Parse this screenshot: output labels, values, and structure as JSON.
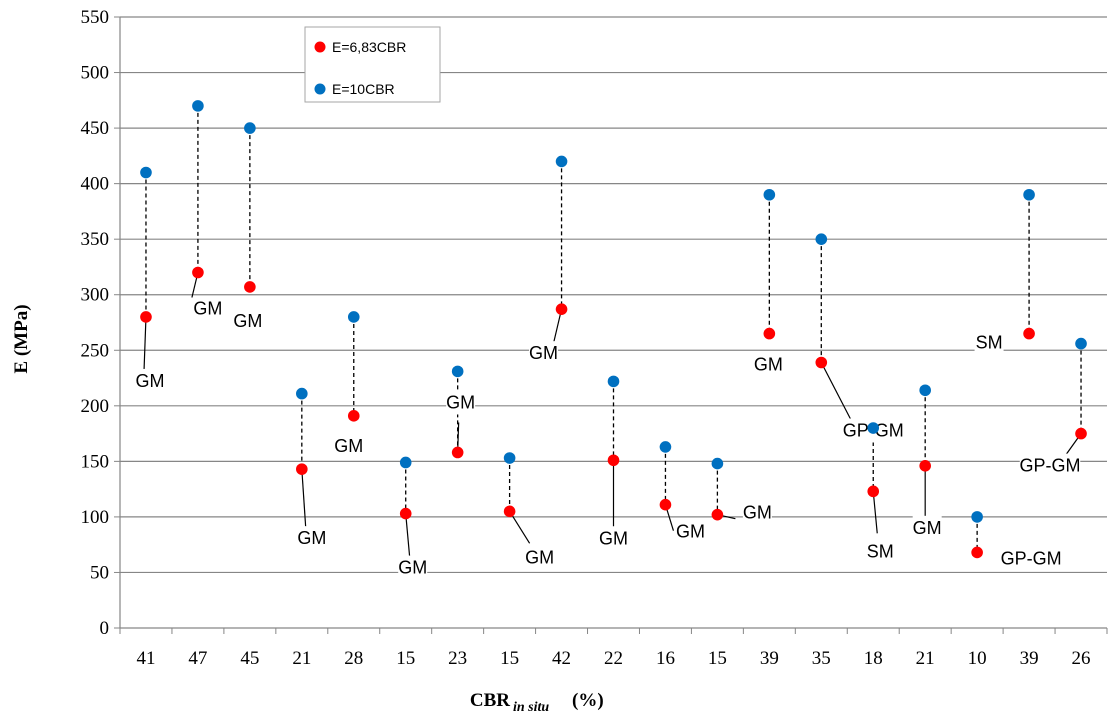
{
  "chart_data": {
    "type": "scatter",
    "title": "",
    "xlabel": "CBR",
    "xlabel_sub": "in situ",
    "xlabel_suffix": "(%)",
    "ylabel": "E (MPa)",
    "ylim": [
      0,
      550
    ],
    "yticks": [
      0,
      50,
      100,
      150,
      200,
      250,
      300,
      350,
      400,
      450,
      500,
      550
    ],
    "grid": "horizontal",
    "legend_position": "top-left",
    "categories": [
      "41",
      "47",
      "45",
      "21",
      "28",
      "15",
      "23",
      "15",
      "42",
      "22",
      "16",
      "15",
      "39",
      "35",
      "18",
      "21",
      "10",
      "39",
      "26"
    ],
    "series": [
      {
        "name": "E=6,83CBR",
        "color": "#ff0000",
        "values": [
          280,
          320,
          307,
          143,
          191,
          103,
          158,
          105,
          287,
          151,
          111,
          102,
          265,
          239,
          123,
          146,
          68,
          265,
          175
        ]
      },
      {
        "name": "E=10CBR",
        "color": "#0070c0",
        "values": [
          410,
          470,
          450,
          211,
          280,
          149,
          231,
          153,
          420,
          222,
          163,
          148,
          390,
          350,
          180,
          214,
          100,
          390,
          256
        ]
      }
    ],
    "soil_labels": [
      "GM",
      "GM",
      "GM",
      "GM",
      "GM",
      "GM",
      "GM",
      "GM",
      "GM",
      "GM",
      "GM",
      "GM",
      "GM",
      "GP-GM",
      "SM",
      "GM",
      "GP-GM",
      "SM",
      "GP-GM"
    ]
  }
}
